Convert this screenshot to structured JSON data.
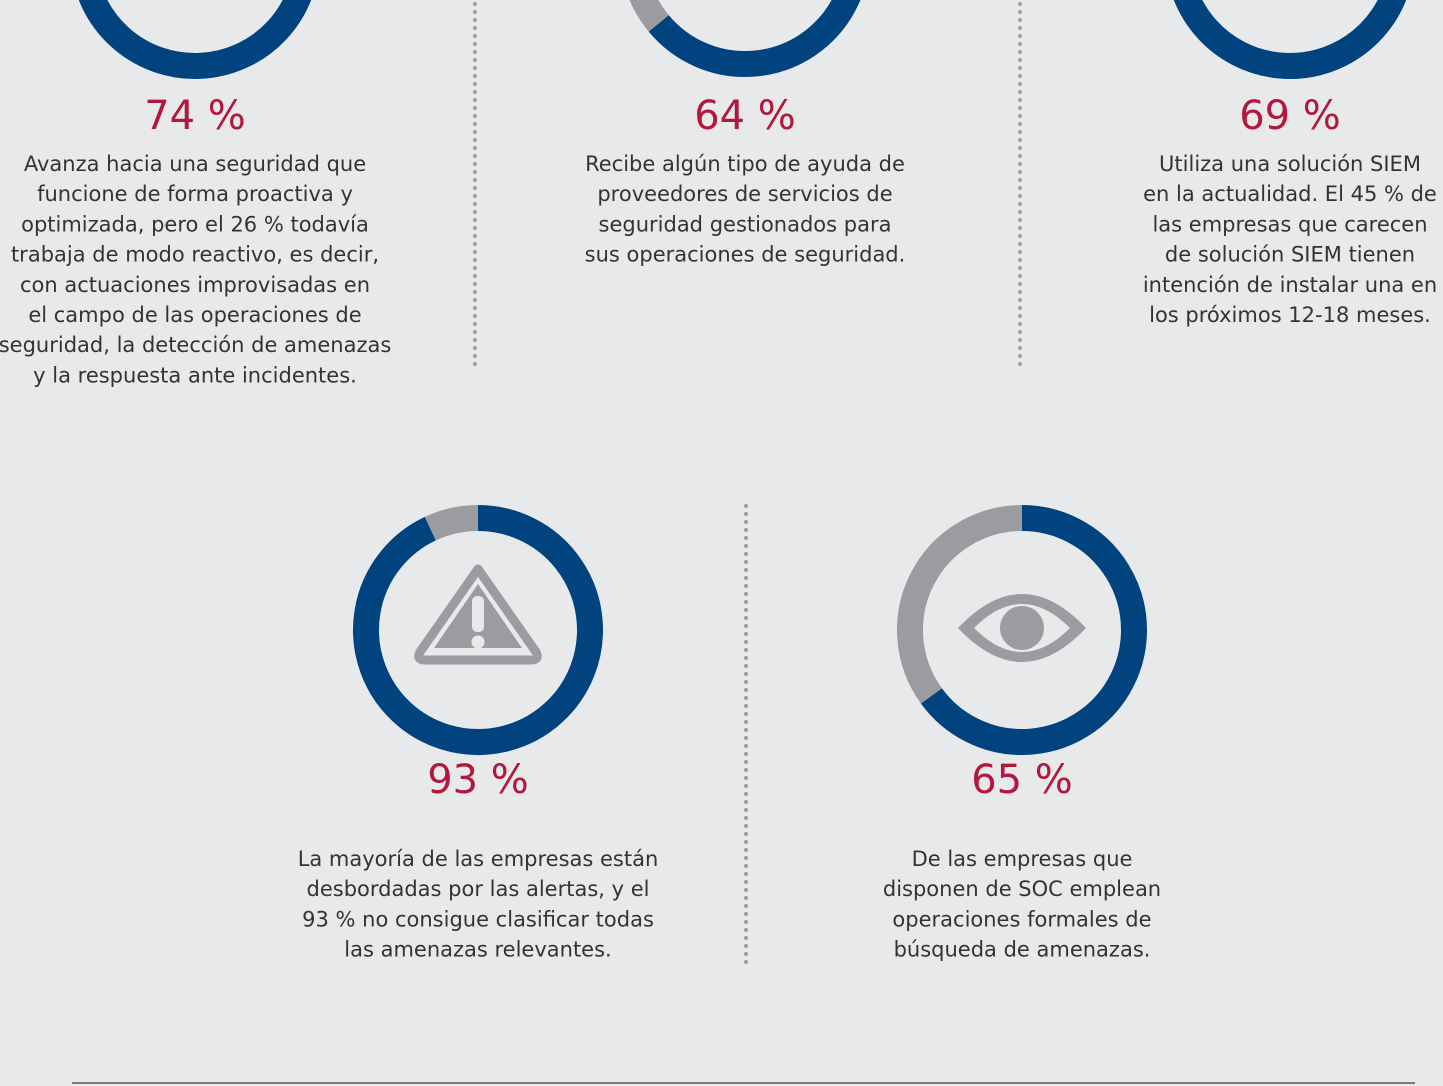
{
  "chart_data": [
    {
      "type": "donut",
      "values": [
        74,
        26
      ],
      "colors": [
        "#00437f",
        "#9a9c9f"
      ],
      "value_label": "74 %",
      "description": [
        "Avanza hacia una seguridad que",
        "funcione de forma proactiva y",
        "optimizada, pero el 26 % todavía",
        "trabaja de modo reactivo, es decir,",
        "con actuaciones improvisadas en",
        "el campo de las operaciones de",
        "seguridad, la detección de amenazas",
        "y la respuesta ante incidentes."
      ]
    },
    {
      "type": "donut",
      "values": [
        64,
        36
      ],
      "colors": [
        "#00437f",
        "#9a9c9f"
      ],
      "value_label": "64 %",
      "description": [
        "Recibe algún tipo de ayuda de",
        "proveedores de servicios de",
        "seguridad gestionados para",
        "sus operaciones de seguridad."
      ]
    },
    {
      "type": "donut",
      "values": [
        69,
        31
      ],
      "colors": [
        "#00437f",
        "#9a9c9f"
      ],
      "value_label": "69 %",
      "description": [
        "Utiliza una solución SIEM",
        "en la actualidad. El 45 % de",
        "las empresas que carecen",
        "de solución SIEM tienen",
        "intención de instalar una en",
        "los próximos 12-18 meses."
      ]
    },
    {
      "type": "donut",
      "values": [
        93,
        7
      ],
      "colors": [
        "#00437f",
        "#9a9c9f"
      ],
      "value_label": "93 %",
      "description": [
        "La mayoría de las empresas están",
        "desbordadas por las alertas, y el",
        "93 % no consigue clasificar todas",
        "las amenazas relevantes."
      ]
    },
    {
      "type": "donut",
      "values": [
        65,
        35
      ],
      "colors": [
        "#00437f",
        "#9a9c9f"
      ],
      "value_label": "65 %",
      "description": [
        "De las empresas que",
        "disponen de SOC emplean",
        "operaciones formales de",
        "búsqueda de amenazas."
      ]
    }
  ]
}
